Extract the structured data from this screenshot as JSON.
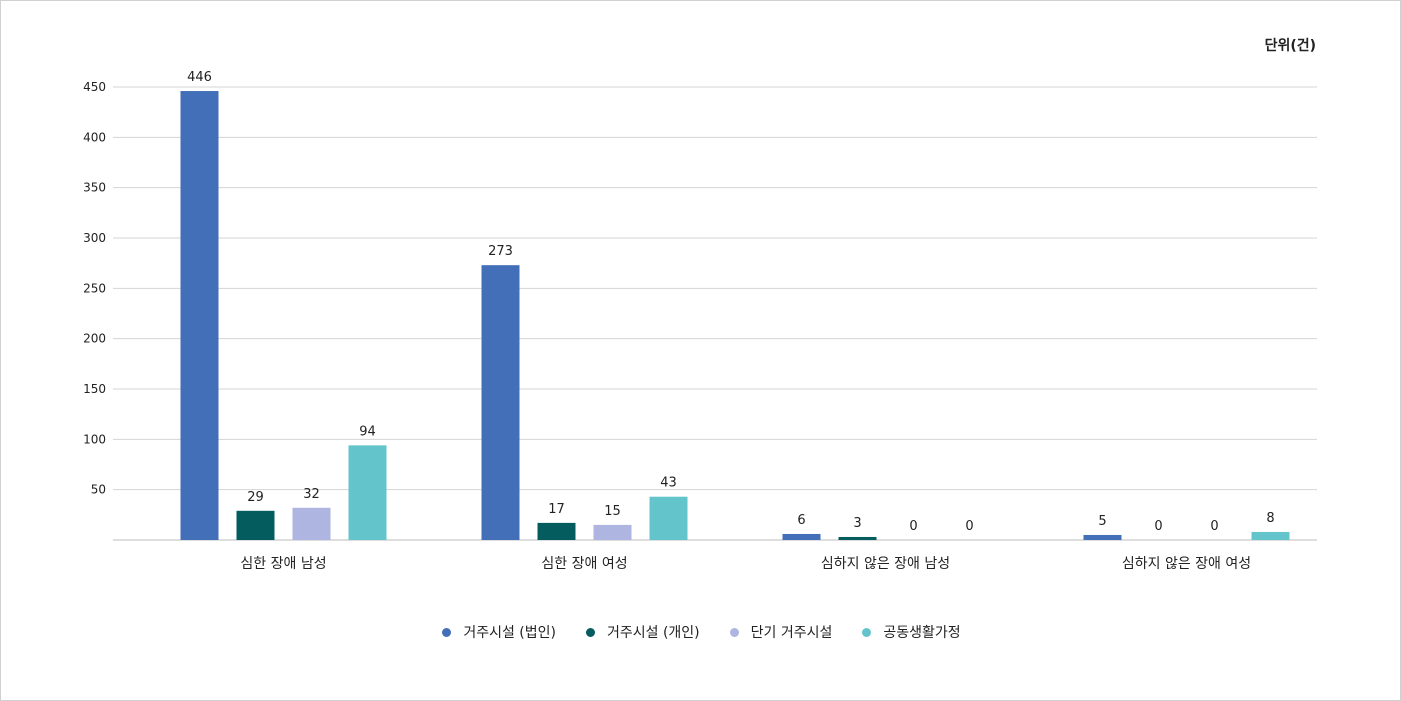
{
  "unit_label": "단위(건)",
  "chart_data": {
    "type": "bar",
    "categories": [
      "심한 장애 남성",
      "심한 장애 여성",
      "심하지 않은 장애 남성",
      "심하지 않은 장애 여성"
    ],
    "series": [
      {
        "name": "거주시설 (법인)",
        "color": "#436eb8",
        "values": [
          446,
          273,
          6,
          5
        ]
      },
      {
        "name": "거주시설 (개인)",
        "color": "#045c5e",
        "values": [
          29,
          17,
          3,
          0
        ]
      },
      {
        "name": "단기 거주시설",
        "color": "#adb5e0",
        "values": [
          32,
          15,
          0,
          0
        ]
      },
      {
        "name": "공동생활가정",
        "color": "#63c5cb",
        "values": [
          94,
          43,
          0,
          8
        ]
      }
    ],
    "yticks": [
      50,
      100,
      150,
      200,
      250,
      300,
      350,
      400,
      450
    ],
    "ylim": [
      0,
      450
    ],
    "grid": true,
    "legend_position": "bottom"
  }
}
